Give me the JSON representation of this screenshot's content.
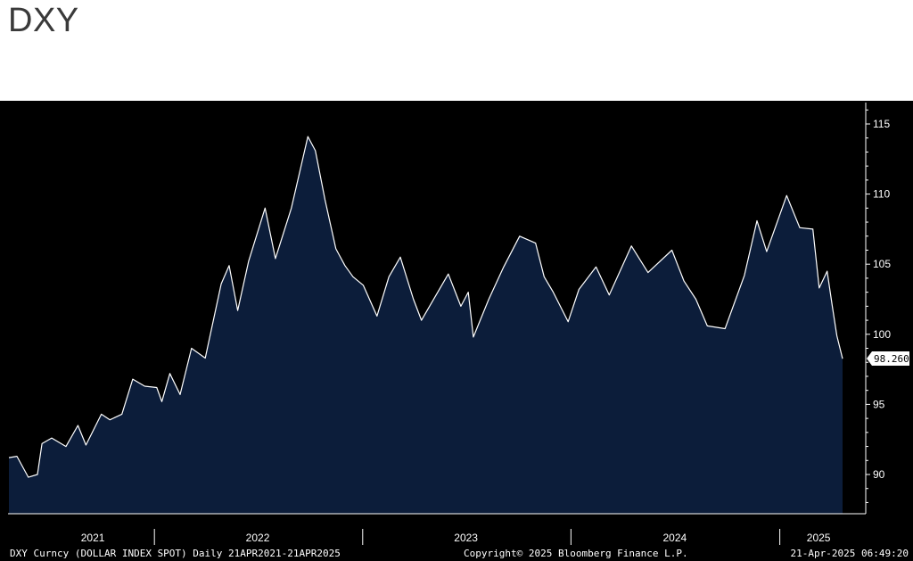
{
  "page": {
    "title": "DXY"
  },
  "colors": {
    "plot_bg": "#000000",
    "area_fill": "#0c1d3a",
    "line": "#ffffff",
    "axis_text": "#ffffff"
  },
  "chart_data": {
    "type": "area",
    "title": "DXY",
    "xlabel": "",
    "ylabel": "",
    "ylim": [
      87,
      116.5
    ],
    "xlim": [
      "2021-04-21",
      "2025-04-21"
    ],
    "y_ticks": [
      90,
      95,
      100,
      105,
      110,
      115
    ],
    "x_ticks": [
      {
        "label": "2021",
        "date": "2021-09-15"
      },
      {
        "label": "2022",
        "date": "2022-07-01"
      },
      {
        "label": "2023",
        "date": "2023-07-01"
      },
      {
        "label": "2024",
        "date": "2024-07-01"
      },
      {
        "label": "2025",
        "date": "2025-03-10"
      }
    ],
    "year_dividers": [
      "2022-01-01",
      "2023-01-01",
      "2024-01-01",
      "2025-01-01"
    ],
    "grid": false,
    "last_value_label": "98.260",
    "series": [
      {
        "values": [
          [
            "2021-04-21",
            91.2
          ],
          [
            "2021-05-05",
            91.3
          ],
          [
            "2021-05-25",
            89.8
          ],
          [
            "2021-06-10",
            90.0
          ],
          [
            "2021-06-18",
            92.2
          ],
          [
            "2021-07-05",
            92.6
          ],
          [
            "2021-07-30",
            92.0
          ],
          [
            "2021-08-20",
            93.5
          ],
          [
            "2021-09-03",
            92.1
          ],
          [
            "2021-09-30",
            94.3
          ],
          [
            "2021-10-15",
            93.9
          ],
          [
            "2021-11-05",
            94.3
          ],
          [
            "2021-11-24",
            96.8
          ],
          [
            "2021-12-15",
            96.3
          ],
          [
            "2022-01-05",
            96.2
          ],
          [
            "2022-01-14",
            95.2
          ],
          [
            "2022-01-28",
            97.2
          ],
          [
            "2022-02-15",
            95.7
          ],
          [
            "2022-03-07",
            99.0
          ],
          [
            "2022-03-31",
            98.3
          ],
          [
            "2022-04-28",
            103.6
          ],
          [
            "2022-05-12",
            104.9
          ],
          [
            "2022-05-27",
            101.7
          ],
          [
            "2022-06-15",
            105.2
          ],
          [
            "2022-07-14",
            109.0
          ],
          [
            "2022-08-01",
            105.4
          ],
          [
            "2022-08-29",
            109.0
          ],
          [
            "2022-09-27",
            114.1
          ],
          [
            "2022-10-10",
            113.1
          ],
          [
            "2022-10-27",
            109.6
          ],
          [
            "2022-11-15",
            106.1
          ],
          [
            "2022-12-01",
            104.9
          ],
          [
            "2022-12-15",
            104.1
          ],
          [
            "2023-01-02",
            103.5
          ],
          [
            "2023-01-26",
            101.3
          ],
          [
            "2023-02-16",
            104.1
          ],
          [
            "2023-03-08",
            105.5
          ],
          [
            "2023-03-31",
            102.5
          ],
          [
            "2023-04-14",
            101.0
          ],
          [
            "2023-05-31",
            104.3
          ],
          [
            "2023-06-22",
            102.0
          ],
          [
            "2023-07-05",
            103.0
          ],
          [
            "2023-07-14",
            99.8
          ],
          [
            "2023-08-10",
            102.5
          ],
          [
            "2023-09-05",
            104.8
          ],
          [
            "2023-10-03",
            107.0
          ],
          [
            "2023-10-31",
            106.5
          ],
          [
            "2023-11-15",
            104.1
          ],
          [
            "2023-12-01",
            103.0
          ],
          [
            "2023-12-27",
            100.9
          ],
          [
            "2024-01-15",
            103.2
          ],
          [
            "2024-02-14",
            104.8
          ],
          [
            "2024-03-08",
            102.8
          ],
          [
            "2024-04-16",
            106.3
          ],
          [
            "2024-05-15",
            104.4
          ],
          [
            "2024-06-26",
            106.0
          ],
          [
            "2024-07-17",
            103.8
          ],
          [
            "2024-08-07",
            102.5
          ],
          [
            "2024-08-27",
            100.6
          ],
          [
            "2024-09-27",
            100.4
          ],
          [
            "2024-10-31",
            104.2
          ],
          [
            "2024-11-22",
            108.1
          ],
          [
            "2024-12-09",
            105.9
          ],
          [
            "2025-01-13",
            109.9
          ],
          [
            "2025-02-05",
            107.6
          ],
          [
            "2025-02-28",
            107.5
          ],
          [
            "2025-03-11",
            103.3
          ],
          [
            "2025-03-25",
            104.5
          ],
          [
            "2025-04-03",
            102.0
          ],
          [
            "2025-04-11",
            99.9
          ],
          [
            "2025-04-21",
            98.26
          ]
        ]
      }
    ]
  },
  "footer": {
    "left": "DXY Curncy (DOLLAR INDEX SPOT)  Daily 21APR2021-21APR2025",
    "center": "Copyright© 2025 Bloomberg Finance L.P.",
    "right": "21-Apr-2025 06:49:20"
  }
}
